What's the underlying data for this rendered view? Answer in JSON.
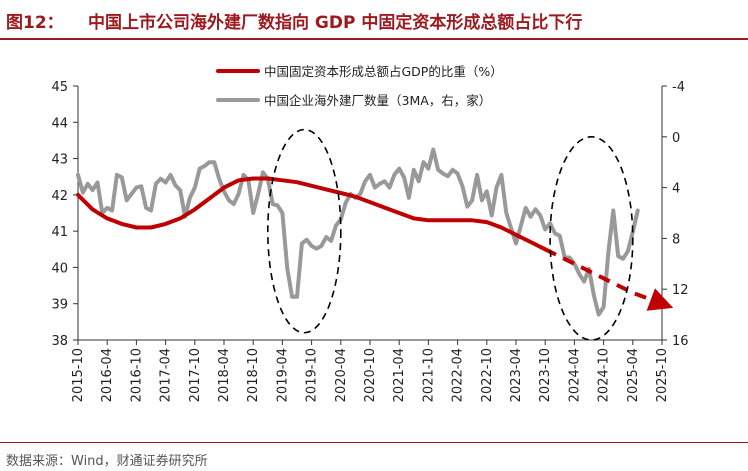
{
  "header": {
    "figure_label": "图12：",
    "title": "中国上市公司海外建厂数指向 GDP 中固定资本形成总额占比下行"
  },
  "footer": {
    "source": "数据来源：Wind，财通证券研究所"
  },
  "chart_data": {
    "type": "line",
    "x_ticks": [
      "2015-10",
      "2016-04",
      "2016-10",
      "2017-04",
      "2017-10",
      "2018-04",
      "2018-10",
      "2019-04",
      "2019-10",
      "2020-04",
      "2020-10",
      "2021-04",
      "2021-10",
      "2022-04",
      "2022-10",
      "2023-04",
      "2023-10",
      "2024-04",
      "2024-10",
      "2025-04",
      "2025-10"
    ],
    "y_left": {
      "ylim": [
        38,
        45
      ],
      "ticks": [
        "38",
        "39",
        "40",
        "41",
        "42",
        "43",
        "44",
        "45"
      ]
    },
    "y_right": {
      "ylim": [
        -4,
        16
      ],
      "inverted": true,
      "ticks": [
        "-4",
        "0",
        "4",
        "8",
        "12",
        "16"
      ]
    },
    "legend_placement": "top-center",
    "colors": {
      "gfcf": "#c00000",
      "factories": "#999999",
      "ellipse": "#000000"
    },
    "series": [
      {
        "name": "中国固定资本形成总额占GDP的比重（%）",
        "axis": "left",
        "style": "solid-then-dashed-arrow",
        "solid": [
          [
            "2015-10",
            42.0
          ],
          [
            "2016-01",
            41.6
          ],
          [
            "2016-04",
            41.35
          ],
          [
            "2016-07",
            41.2
          ],
          [
            "2016-10",
            41.1
          ],
          [
            "2017-01",
            41.1
          ],
          [
            "2017-04",
            41.2
          ],
          [
            "2017-07",
            41.35
          ],
          [
            "2017-10",
            41.6
          ],
          [
            "2018-01",
            41.9
          ],
          [
            "2018-04",
            42.2
          ],
          [
            "2018-07",
            42.4
          ],
          [
            "2018-10",
            42.45
          ],
          [
            "2019-01",
            42.45
          ],
          [
            "2019-04",
            42.4
          ],
          [
            "2019-07",
            42.35
          ],
          [
            "2019-10",
            42.25
          ],
          [
            "2020-01",
            42.15
          ],
          [
            "2020-04",
            42.05
          ],
          [
            "2020-07",
            41.95
          ],
          [
            "2020-10",
            41.8
          ],
          [
            "2021-01",
            41.65
          ],
          [
            "2021-04",
            41.5
          ],
          [
            "2021-07",
            41.35
          ],
          [
            "2021-10",
            41.3
          ],
          [
            "2022-01",
            41.3
          ],
          [
            "2022-04",
            41.3
          ],
          [
            "2022-07",
            41.3
          ],
          [
            "2022-10",
            41.25
          ],
          [
            "2023-01",
            41.1
          ],
          [
            "2023-04",
            40.9
          ],
          [
            "2023-07",
            40.7
          ],
          [
            "2023-10",
            40.5
          ]
        ],
        "dashed": [
          [
            "2023-10",
            40.5
          ],
          [
            "2024-04",
            40.1
          ],
          [
            "2024-10",
            39.7
          ],
          [
            "2025-04",
            39.3
          ],
          [
            "2025-10",
            39.0
          ]
        ]
      },
      {
        "name": "中国企业海外建厂数量（3MA，右，家）",
        "axis": "right",
        "style": "solid",
        "points": [
          [
            "2015-10",
            3.0
          ],
          [
            "2015-11",
            4.4
          ],
          [
            "2015-12",
            3.7
          ],
          [
            "2016-01",
            4.2
          ],
          [
            "2016-02",
            3.6
          ],
          [
            "2016-03",
            6.0
          ],
          [
            "2016-04",
            5.6
          ],
          [
            "2016-05",
            5.8
          ],
          [
            "2016-06",
            3.0
          ],
          [
            "2016-07",
            3.2
          ],
          [
            "2016-08",
            5.0
          ],
          [
            "2016-09",
            4.5
          ],
          [
            "2016-10",
            4.0
          ],
          [
            "2016-11",
            3.9
          ],
          [
            "2016-12",
            5.6
          ],
          [
            "2017-01",
            5.8
          ],
          [
            "2017-02",
            3.7
          ],
          [
            "2017-03",
            3.3
          ],
          [
            "2017-04",
            3.6
          ],
          [
            "2017-05",
            3.0
          ],
          [
            "2017-06",
            3.8
          ],
          [
            "2017-07",
            4.2
          ],
          [
            "2017-08",
            6.3
          ],
          [
            "2017-09",
            4.8
          ],
          [
            "2017-10",
            4.0
          ],
          [
            "2017-11",
            2.5
          ],
          [
            "2017-12",
            2.3
          ],
          [
            "2018-01",
            2.0
          ],
          [
            "2018-02",
            2.0
          ],
          [
            "2018-03",
            3.3
          ],
          [
            "2018-04",
            4.3
          ],
          [
            "2018-05",
            5.0
          ],
          [
            "2018-06",
            5.3
          ],
          [
            "2018-07",
            4.5
          ],
          [
            "2018-08",
            3.0
          ],
          [
            "2018-09",
            3.4
          ],
          [
            "2018-10",
            6.0
          ],
          [
            "2018-11",
            4.5
          ],
          [
            "2018-12",
            2.8
          ],
          [
            "2019-01",
            3.3
          ],
          [
            "2019-02",
            5.3
          ],
          [
            "2019-03",
            5.4
          ],
          [
            "2019-04",
            6.0
          ],
          [
            "2019-05",
            10.4
          ],
          [
            "2019-06",
            12.6
          ],
          [
            "2019-07",
            12.6
          ],
          [
            "2019-08",
            8.4
          ],
          [
            "2019-09",
            8.1
          ],
          [
            "2019-10",
            8.6
          ],
          [
            "2019-11",
            8.8
          ],
          [
            "2019-12",
            8.6
          ],
          [
            "2020-01",
            7.9
          ],
          [
            "2020-02",
            8.2
          ],
          [
            "2020-03",
            7.0
          ],
          [
            "2020-04",
            6.5
          ],
          [
            "2020-05",
            5.2
          ],
          [
            "2020-06",
            4.5
          ],
          [
            "2020-07",
            4.8
          ],
          [
            "2020-08",
            4.5
          ],
          [
            "2020-09",
            3.5
          ],
          [
            "2020-10",
            3.0
          ],
          [
            "2020-11",
            4.0
          ],
          [
            "2020-12",
            3.7
          ],
          [
            "2021-01",
            3.5
          ],
          [
            "2021-02",
            4.0
          ],
          [
            "2021-03",
            3.0
          ],
          [
            "2021-04",
            2.5
          ],
          [
            "2021-05",
            3.2
          ],
          [
            "2021-06",
            4.8
          ],
          [
            "2021-07",
            2.6
          ],
          [
            "2021-08",
            3.5
          ],
          [
            "2021-09",
            2.0
          ],
          [
            "2021-10",
            2.5
          ],
          [
            "2021-11",
            1.0
          ],
          [
            "2021-12",
            2.6
          ],
          [
            "2022-01",
            2.9
          ],
          [
            "2022-02",
            3.1
          ],
          [
            "2022-03",
            2.6
          ],
          [
            "2022-04",
            2.9
          ],
          [
            "2022-05",
            3.9
          ],
          [
            "2022-06",
            5.5
          ],
          [
            "2022-07",
            5.0
          ],
          [
            "2022-08",
            3.0
          ],
          [
            "2022-09",
            5.0
          ],
          [
            "2022-10",
            4.3
          ],
          [
            "2022-11",
            6.2
          ],
          [
            "2022-12",
            4.0
          ],
          [
            "2023-01",
            3.0
          ],
          [
            "2023-02",
            6.0
          ],
          [
            "2023-03",
            7.2
          ],
          [
            "2023-04",
            8.4
          ],
          [
            "2023-05",
            7.0
          ],
          [
            "2023-06",
            5.6
          ],
          [
            "2023-07",
            6.3
          ],
          [
            "2023-08",
            5.7
          ],
          [
            "2023-09",
            6.2
          ],
          [
            "2023-10",
            7.3
          ],
          [
            "2023-11",
            6.8
          ],
          [
            "2023-12",
            7.6
          ],
          [
            "2024-01",
            7.8
          ],
          [
            "2024-02",
            9.5
          ],
          [
            "2024-03",
            9.5
          ],
          [
            "2024-04",
            10.0
          ],
          [
            "2024-05",
            10.8
          ],
          [
            "2024-06",
            11.4
          ],
          [
            "2024-07",
            10.4
          ],
          [
            "2024-08",
            12.5
          ],
          [
            "2024-09",
            14.0
          ],
          [
            "2024-10",
            13.4
          ],
          [
            "2024-11",
            9.0
          ],
          [
            "2024-12",
            5.8
          ],
          [
            "2025-01",
            9.4
          ],
          [
            "2025-02",
            9.6
          ],
          [
            "2025-03",
            9.0
          ],
          [
            "2025-04",
            7.5
          ],
          [
            "2025-05",
            5.8
          ]
        ]
      }
    ],
    "annotations": [
      {
        "type": "dashed-ellipse",
        "x_range": [
          "2019-01",
          "2020-04"
        ],
        "y_left_range": [
          38.2,
          43.8
        ]
      },
      {
        "type": "dashed-ellipse",
        "x_range": [
          "2023-11",
          "2025-04"
        ],
        "y_left_range": [
          38.0,
          43.6
        ]
      }
    ]
  }
}
